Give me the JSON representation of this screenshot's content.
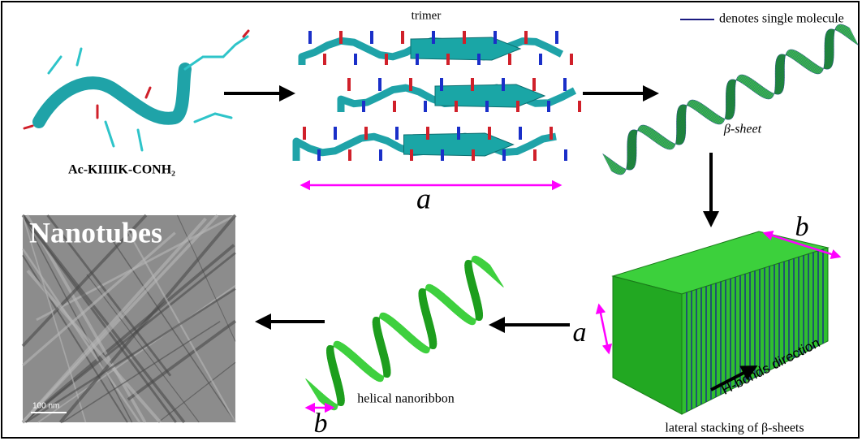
{
  "labels": {
    "trimer": "trimer",
    "legend": "denotes single molecule",
    "peptide": "Ac-KIIIIK-CONH₂",
    "trimer_length": "a",
    "beta_sheet": "β-sheet",
    "stack_width": "b",
    "stack_height": "a",
    "hbonds": "H-bonds direction",
    "stacking": "lateral stacking of β-sheets",
    "ribbon": "helical nanoribbon",
    "ribbon_width": "b",
    "nanotubes": "Nanotubes",
    "scale_bar": "100 nm"
  }
}
